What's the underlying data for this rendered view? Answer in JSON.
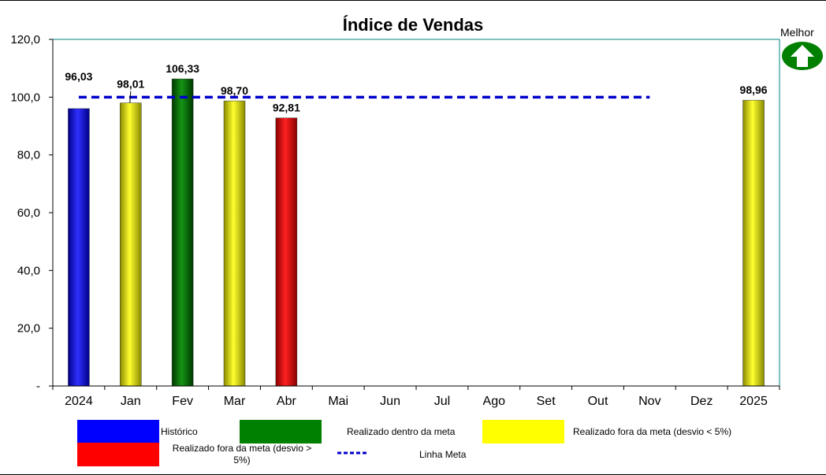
{
  "chart_data": {
    "type": "bar",
    "title": "Índice de Vendas",
    "categories": [
      "2024",
      "Jan",
      "Fev",
      "Mar",
      "Abr",
      "Mai",
      "Jun",
      "Jul",
      "Ago",
      "Set",
      "Out",
      "Nov",
      "Dez",
      "2025"
    ],
    "values": [
      96.03,
      98.01,
      106.33,
      98.7,
      92.81,
      null,
      null,
      null,
      null,
      null,
      null,
      null,
      null,
      98.96
    ],
    "value_labels": [
      "96,03",
      "98,01",
      "106,33",
      "98,70",
      "92,81",
      "",
      "",
      "",
      "",
      "",
      "",
      "",
      "",
      "98,96"
    ],
    "bar_status": [
      "historico",
      "fora_lt5",
      "dentro",
      "fora_lt5",
      "fora_gt5",
      null,
      null,
      null,
      null,
      null,
      null,
      null,
      null,
      "fora_lt5"
    ],
    "meta": {
      "value": 100,
      "from_category": "2024",
      "to_category": "Nov"
    },
    "ylim": [
      0,
      120
    ],
    "yticks": [
      0,
      20,
      40,
      60,
      80,
      100,
      120
    ],
    "ytick_labels": [
      "-",
      "20,0",
      "40,0",
      "60,0",
      "80,0",
      "100,0",
      "120,0"
    ],
    "grid": false,
    "legend_placement": "bottom"
  },
  "colors": {
    "historico": "#0000ff",
    "dentro": "#008000",
    "fora_lt5": "#ffff00",
    "fora_gt5": "#ff0000",
    "meta_line": "#0000cc",
    "axis": "#000000",
    "plot_border": "#008080",
    "better_arrow": "#008000"
  },
  "legend": [
    {
      "key": "historico",
      "label": "Histórico"
    },
    {
      "key": "dentro",
      "label": "Realizado dentro da meta"
    },
    {
      "key": "fora_lt5",
      "label": "Realizado fora da meta (desvio < 5%)"
    },
    {
      "key": "fora_gt5",
      "label": "Realizado fora da meta (desvio > 5%)"
    },
    {
      "key": "meta",
      "label": "Linha Meta"
    }
  ],
  "better_indicator": {
    "label": "Melhor",
    "icon": "up-arrow-icon",
    "direction": "up"
  }
}
